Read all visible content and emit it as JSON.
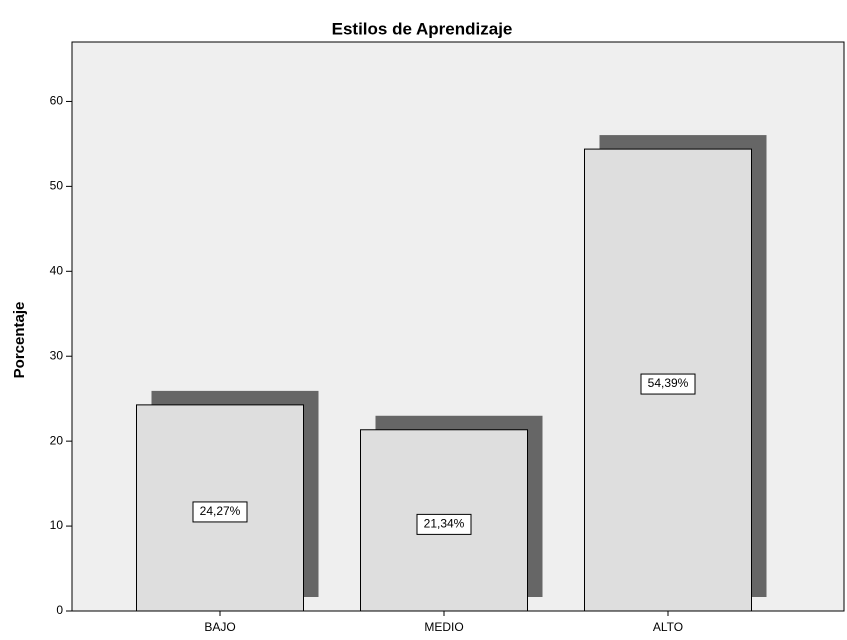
{
  "chart_data": {
    "type": "bar",
    "title": "Estilos de Aprendizaje",
    "y_label": "Porcentaje",
    "categories": [
      "BAJO",
      "MEDIO",
      "ALTO"
    ],
    "values": [
      24.27,
      21.34,
      54.39
    ],
    "value_labels": [
      "24,27%",
      "21,34%",
      "54,39%"
    ],
    "color": "#dedede",
    "ylim": [
      0,
      67
    ],
    "yticks": [
      0,
      10,
      20,
      30,
      40,
      50,
      60
    ],
    "grid": false
  }
}
